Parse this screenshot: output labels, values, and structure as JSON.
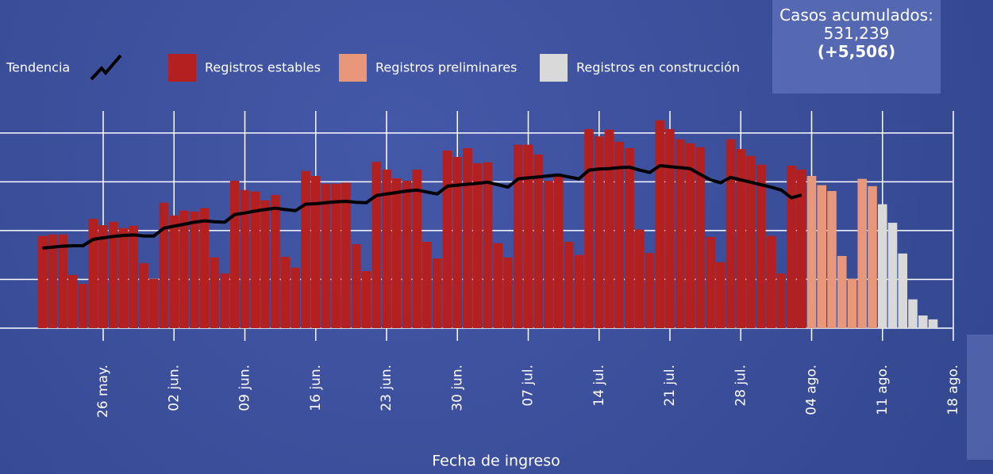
{
  "chart_data": {
    "type": "bar",
    "xlabel": "Fecha de ingreso",
    "summary": {
      "label": "Casos acumulados:",
      "total": "531,239",
      "change": "(+5,506)"
    },
    "categories": [
      null,
      null,
      null,
      null,
      null,
      null,
      "26 may.",
      null,
      null,
      null,
      null,
      null,
      null,
      "02 jun.",
      null,
      null,
      null,
      null,
      null,
      null,
      "09 jun.",
      null,
      null,
      null,
      null,
      null,
      null,
      "16 jun.",
      null,
      null,
      null,
      null,
      null,
      null,
      "23 jun.",
      null,
      null,
      null,
      null,
      null,
      null,
      "30 jun.",
      null,
      null,
      null,
      null,
      null,
      null,
      "07 jul.",
      null,
      null,
      null,
      null,
      null,
      null,
      "14 jul.",
      null,
      null,
      null,
      null,
      null,
      null,
      "21 jul.",
      null,
      null,
      null,
      null,
      null,
      null,
      "28 jul.",
      null,
      null,
      null,
      null,
      null,
      null,
      "04 ago.",
      null,
      null,
      null,
      null,
      null,
      null,
      "11 ago.",
      null,
      null,
      null,
      null,
      null,
      null,
      "18 ago."
    ],
    "ylim": [
      0,
      4.5
    ],
    "yticks": [
      0,
      1,
      2,
      3,
      4
    ],
    "grid": true,
    "series": [
      {
        "name": "Registros estables",
        "color": "#b3201f",
        "values": [
          1.89,
          1.92,
          1.92,
          1.09,
          0.91,
          2.24,
          2.11,
          2.18,
          2.05,
          2.1,
          1.33,
          1.01,
          2.57,
          2.31,
          2.41,
          2.39,
          2.46,
          1.45,
          1.12,
          3.02,
          2.83,
          2.8,
          2.62,
          2.73,
          1.46,
          1.24,
          3.22,
          3.12,
          2.96,
          2.96,
          2.98,
          1.72,
          1.17,
          3.41,
          3.25,
          3.07,
          3.02,
          3.25,
          1.77,
          1.43,
          3.64,
          3.51,
          3.69,
          3.38,
          3.4,
          1.74,
          1.45,
          3.76,
          3.76,
          3.56,
          3.02,
          3.11,
          1.77,
          1.5,
          4.08,
          3.93,
          4.07,
          3.82,
          3.69,
          2.02,
          1.54,
          4.26,
          4.08,
          3.87,
          3.79,
          3.71,
          1.87,
          1.35,
          3.87,
          3.67,
          3.53,
          3.35,
          1.89,
          1.12,
          3.33,
          3.25,
          null,
          null,
          null,
          null,
          null,
          null,
          null,
          null,
          null,
          null,
          null,
          null,
          null,
          null,
          null
        ]
      },
      {
        "name": "Registros preliminares",
        "color": "#e8977a",
        "values": [
          null,
          null,
          null,
          null,
          null,
          null,
          null,
          null,
          null,
          null,
          null,
          null,
          null,
          null,
          null,
          null,
          null,
          null,
          null,
          null,
          null,
          null,
          null,
          null,
          null,
          null,
          null,
          null,
          null,
          null,
          null,
          null,
          null,
          null,
          null,
          null,
          null,
          null,
          null,
          null,
          null,
          null,
          null,
          null,
          null,
          null,
          null,
          null,
          null,
          null,
          null,
          null,
          null,
          null,
          null,
          null,
          null,
          null,
          null,
          null,
          null,
          null,
          null,
          null,
          null,
          null,
          null,
          null,
          null,
          null,
          null,
          null,
          null,
          null,
          null,
          null,
          3.12,
          2.93,
          2.81,
          1.48,
          1.01,
          3.06,
          2.91,
          null,
          null,
          null,
          null,
          null,
          null,
          null,
          null
        ]
      },
      {
        "name": "Registros en construcción",
        "color": "#d9d9d9",
        "values": [
          null,
          null,
          null,
          null,
          null,
          null,
          null,
          null,
          null,
          null,
          null,
          null,
          null,
          null,
          null,
          null,
          null,
          null,
          null,
          null,
          null,
          null,
          null,
          null,
          null,
          null,
          null,
          null,
          null,
          null,
          null,
          null,
          null,
          null,
          null,
          null,
          null,
          null,
          null,
          null,
          null,
          null,
          null,
          null,
          null,
          null,
          null,
          null,
          null,
          null,
          null,
          null,
          null,
          null,
          null,
          null,
          null,
          null,
          null,
          null,
          null,
          null,
          null,
          null,
          null,
          null,
          null,
          null,
          null,
          null,
          null,
          null,
          null,
          null,
          null,
          null,
          null,
          null,
          null,
          null,
          null,
          null,
          null,
          2.54,
          2.16,
          1.53,
          0.59,
          0.26,
          0.18,
          null,
          null
        ]
      },
      {
        "name": "Tendencia",
        "type": "line",
        "color": "#000000",
        "values": [
          1.64,
          1.66,
          1.68,
          1.69,
          1.69,
          1.82,
          1.85,
          1.88,
          1.9,
          1.91,
          1.89,
          1.89,
          2.05,
          2.09,
          2.13,
          2.17,
          2.2,
          2.18,
          2.17,
          2.33,
          2.36,
          2.4,
          2.43,
          2.46,
          2.43,
          2.41,
          2.54,
          2.55,
          2.57,
          2.59,
          2.6,
          2.58,
          2.57,
          2.72,
          2.75,
          2.78,
          2.81,
          2.83,
          2.79,
          2.75,
          2.91,
          2.93,
          2.95,
          2.97,
          2.99,
          2.94,
          2.89,
          3.06,
          3.08,
          3.1,
          3.12,
          3.14,
          3.1,
          3.06,
          3.24,
          3.26,
          3.27,
          3.29,
          3.3,
          3.24,
          3.19,
          3.33,
          3.31,
          3.29,
          3.27,
          3.15,
          3.04,
          2.98,
          3.09,
          3.04,
          2.99,
          2.94,
          2.89,
          2.83,
          2.67,
          2.73,
          null,
          null,
          null,
          null,
          null,
          null,
          null,
          null,
          null,
          null,
          null,
          null,
          null,
          null,
          null
        ]
      }
    ]
  }
}
